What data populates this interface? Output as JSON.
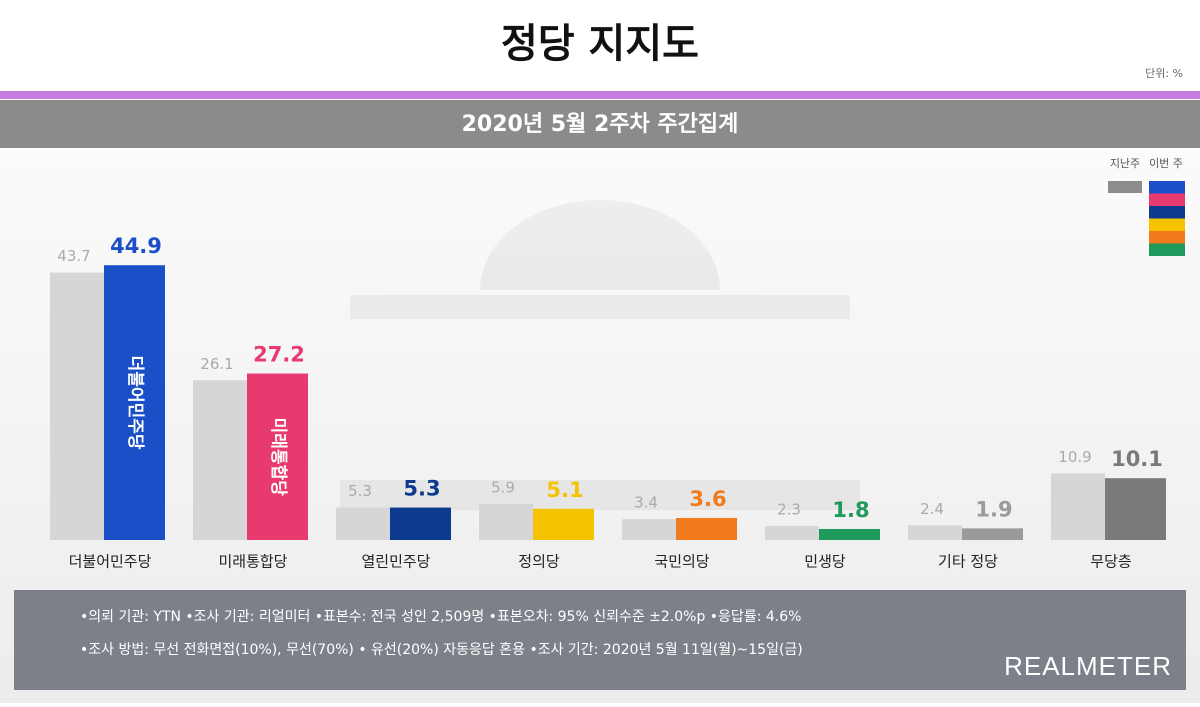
{
  "chart_data": {
    "type": "bar",
    "title": "정당 지지도",
    "unit": "단위: %",
    "subtitle": "2020년 5월 2주차 주간집계",
    "categories": [
      "더불어민주당",
      "미래통합당",
      "열린민주당",
      "정의당",
      "국민의당",
      "민생당",
      "기타 정당",
      "무당층"
    ],
    "series": [
      {
        "name": "지난주",
        "color": "#d6d6d6",
        "values": [
          43.7,
          26.1,
          5.3,
          5.9,
          3.4,
          2.3,
          2.4,
          10.9
        ]
      },
      {
        "name": "이번 주",
        "colors": [
          "#1a4fc8",
          "#e83a6e",
          "#0c3a8e",
          "#f5c300",
          "#f07a1c",
          "#1d9a5c",
          "#9a9a9a",
          "#7a7a7a"
        ],
        "values": [
          44.9,
          27.2,
          5.3,
          5.1,
          3.6,
          1.8,
          1.9,
          10.1
        ]
      }
    ],
    "notes": [
      "•의뢰 기관: YTN •조사 기관: 리얼미터 •표본수: 전국 성인 2,509명 •표본오차: 95% 신뢰수준 ±2.0%p •응답률: 4.6%",
      "•조사 방법: 무선 전화면접(10%), 무선(70%) • 유선(20%) 자동응답 혼용 •조사 기간: 2020년 5월 11일(월)~15일(금)"
    ],
    "brand": "REALMETER"
  }
}
